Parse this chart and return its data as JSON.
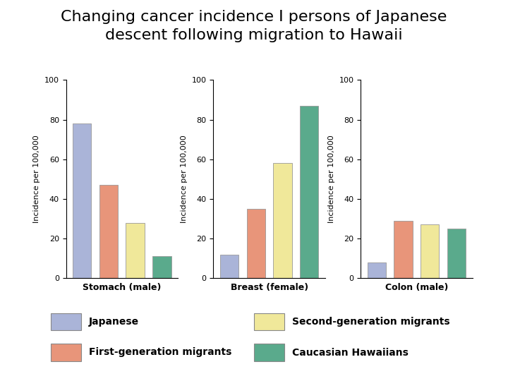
{
  "title_line1": "Changing cancer incidence I persons of Japanese",
  "title_line2": "descent following migration to Hawaii",
  "title_fontsize": 16,
  "groups": [
    "Stomach (male)",
    "Breast (female)",
    "Colon (male)"
  ],
  "categories": [
    "Japanese",
    "First-generation migrants",
    "Second-generation migrants",
    "Caucasian Hawaiians"
  ],
  "values": {
    "Stomach (male)": [
      78,
      47,
      28,
      11
    ],
    "Breast (female)": [
      12,
      35,
      58,
      87
    ],
    "Colon (male)": [
      8,
      29,
      27,
      25
    ]
  },
  "colors": [
    "#aab4d8",
    "#e8957a",
    "#f0e89a",
    "#5aaa8c"
  ],
  "ylabel": "Incidence per 100,000",
  "ylim": [
    0,
    100
  ],
  "yticks": [
    0,
    20,
    40,
    60,
    80,
    100
  ],
  "background_color": "#ffffff",
  "legend_labels": [
    "Japanese",
    "First-generation migrants",
    "Second-generation migrants",
    "Caucasian Hawaiians"
  ]
}
